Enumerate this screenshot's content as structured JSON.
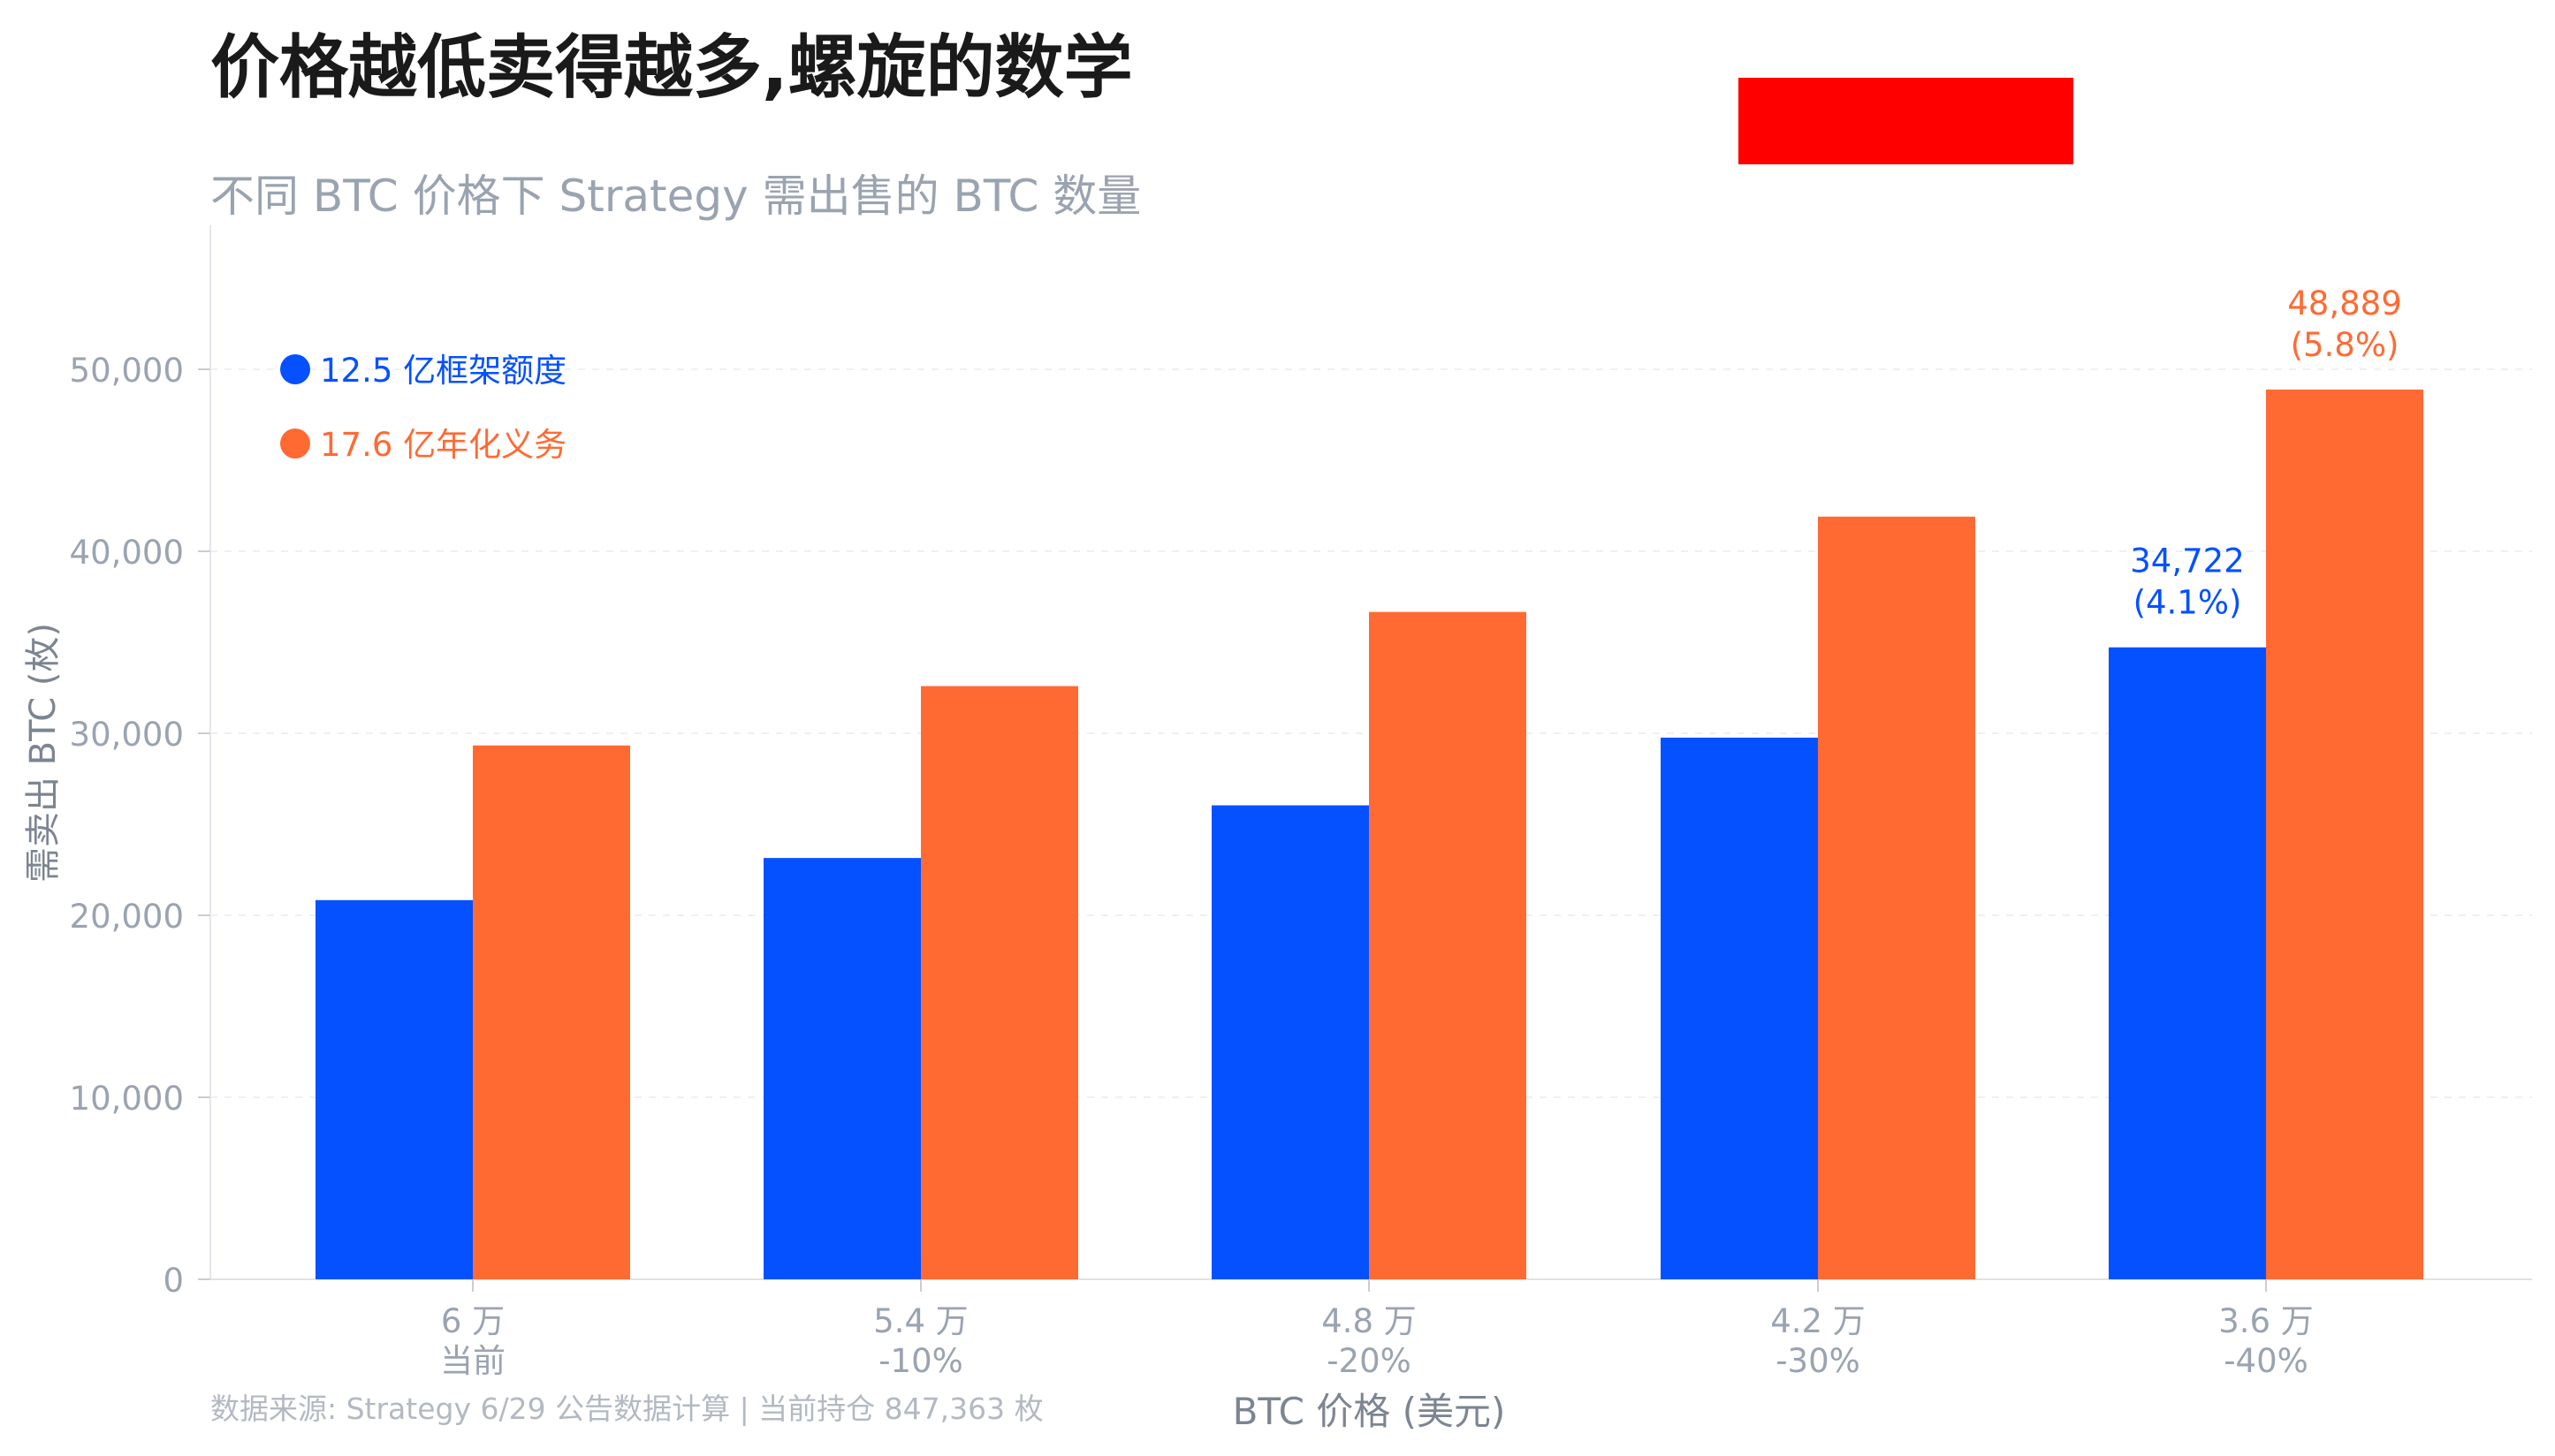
{
  "title": "价格越低卖得越多,螺旋的数学",
  "subtitle": "不同 BTC 价格下 Strategy 需出售的 BTC 数量",
  "source_note": "数据来源: Strategy 6/29 公告数据计算 | 当前持仓 847,363 枚",
  "colors": {
    "series_blue": "#0550ff",
    "series_orange": "#ff6a33",
    "axis_text": "#9aa3b0",
    "redaction": "#ff0000"
  },
  "chart_data": {
    "type": "bar",
    "xlabel": "BTC 价格 (美元)",
    "ylabel": "需卖出 BTC (枚)",
    "ylim": [
      0,
      55000
    ],
    "yticks": [
      "0",
      "10,000",
      "20,000",
      "30,000",
      "40,000",
      "50,000"
    ],
    "ytick_values": [
      0,
      10000,
      20000,
      30000,
      40000,
      50000
    ],
    "grid": "horizontal, dashed",
    "legend_position": "top-left",
    "categories": [
      {
        "price": "6 万",
        "change": "当前"
      },
      {
        "price": "5.4 万",
        "change": "-10%"
      },
      {
        "price": "4.8 万",
        "change": "-20%"
      },
      {
        "price": "4.2 万",
        "change": "-30%"
      },
      {
        "price": "3.6 万",
        "change": "-40%"
      }
    ],
    "series": [
      {
        "name": "12.5 亿框架额度",
        "values": [
          20833,
          23148,
          26042,
          29762,
          34722
        ]
      },
      {
        "name": "17.6 亿年化义务",
        "values": [
          29333,
          32593,
          36667,
          41905,
          48889
        ]
      }
    ],
    "annotations": [
      {
        "series": 0,
        "index": 4,
        "value_label": "34,722",
        "pct_label": "(4.1%)"
      },
      {
        "series": 1,
        "index": 4,
        "value_label": "48,889",
        "pct_label": "(5.8%)"
      }
    ]
  }
}
